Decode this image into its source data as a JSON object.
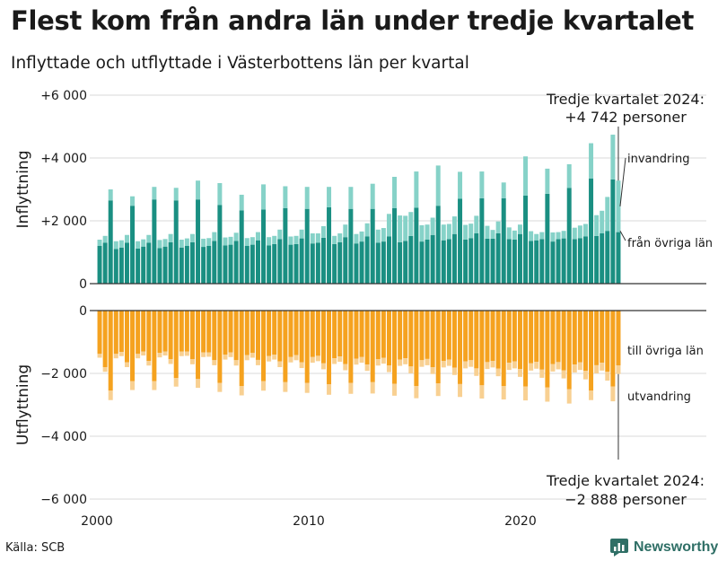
{
  "title": "Flest kom från andra län under tredje kvartalet",
  "subtitle": "Inflyttade och utflyttade i Västerbottens län per kvartal",
  "source": "Källa: SCB",
  "brand": "Newsworthy",
  "colors": {
    "inflow_main": "#1a8f82",
    "inflow_light": "#86d2c8",
    "outflow_main": "#f5a21f",
    "outflow_light": "#f8d092",
    "grid": "#d9d9d9",
    "zero": "#333333",
    "brand": "#2f6f66"
  },
  "chart_data": [
    {
      "type": "bar",
      "stacked": true,
      "panel": "top",
      "ylabel": "Inflyttning",
      "ylim": [
        0,
        6000
      ],
      "yticks": [
        0,
        2000,
        4000,
        6000
      ],
      "ytick_labels": [
        "0",
        "+2 000",
        "+4 000",
        "+6 000"
      ],
      "x_start": 2000,
      "x_end": 2024.75,
      "quarters_per_year": 4,
      "series": [
        {
          "name": "från övriga län",
          "values": [
            1200,
            1300,
            2650,
            1100,
            1150,
            1300,
            2480,
            1120,
            1180,
            1300,
            2680,
            1130,
            1180,
            1320,
            2650,
            1150,
            1200,
            1320,
            2680,
            1170,
            1200,
            1360,
            2500,
            1220,
            1240,
            1360,
            2330,
            1200,
            1240,
            1380,
            2360,
            1220,
            1260,
            1420,
            2400,
            1240,
            1260,
            1440,
            2380,
            1280,
            1300,
            1460,
            2430,
            1260,
            1320,
            1480,
            2380,
            1280,
            1340,
            1500,
            2380,
            1300,
            1340,
            1500,
            2400,
            1320,
            1360,
            1520,
            2420,
            1340,
            1400,
            1550,
            2480,
            1380,
            1420,
            1580,
            2700,
            1400,
            1450,
            1600,
            2720,
            1430,
            1430,
            1600,
            2720,
            1420,
            1400,
            1580,
            2800,
            1360,
            1380,
            1420,
            2860,
            1340,
            1420,
            1440,
            3050,
            1420,
            1450,
            1500,
            3350,
            1520,
            1600,
            1680,
            3320,
            1640
          ]
        },
        {
          "name": "invandring",
          "values": [
            200,
            220,
            350,
            250,
            230,
            250,
            300,
            230,
            230,
            250,
            400,
            260,
            240,
            260,
            400,
            250,
            240,
            260,
            600,
            260,
            250,
            280,
            700,
            250,
            250,
            260,
            500,
            250,
            240,
            260,
            800,
            260,
            260,
            300,
            700,
            260,
            260,
            280,
            700,
            320,
            300,
            370,
            650,
            260,
            280,
            400,
            700,
            300,
            320,
            420,
            800,
            420,
            430,
            720,
            1000,
            850,
            800,
            760,
            1150,
            520,
            480,
            550,
            1280,
            500,
            480,
            560,
            860,
            470,
            460,
            560,
            850,
            410,
            280,
            380,
            500,
            370,
            290,
            300,
            1250,
            310,
            200,
            220,
            800,
            290,
            220,
            240,
            750,
            360,
            400,
            400,
            1120,
            660,
            720,
            1080,
            1422,
            1640
          ]
        }
      ],
      "annotation": {
        "lines": [
          "Tredje kvartalet 2024:",
          "+4 742 personer"
        ]
      },
      "series_labels": [
        "invandring",
        "från övriga län"
      ]
    },
    {
      "type": "bar",
      "stacked": true,
      "panel": "bottom",
      "ylabel": "Utflyttning",
      "ylim": [
        -6000,
        0
      ],
      "yticks": [
        0,
        -2000,
        -4000,
        -6000
      ],
      "ytick_labels": [
        "0",
        "−2 000",
        "−4 000",
        "−6 000"
      ],
      "xticks": [
        2000,
        2010,
        2020
      ],
      "xtick_labels": [
        "2000",
        "2010",
        "2020"
      ],
      "x_start": 2000,
      "x_end": 2024.75,
      "quarters_per_year": 4,
      "series": [
        {
          "name": "till övriga län",
          "values": [
            -1380,
            -1800,
            -2550,
            -1380,
            -1320,
            -1650,
            -2250,
            -1380,
            -1300,
            -1600,
            -2250,
            -1350,
            -1300,
            -1550,
            -2150,
            -1300,
            -1300,
            -1550,
            -2180,
            -1330,
            -1330,
            -1580,
            -2300,
            -1400,
            -1330,
            -1580,
            -2400,
            -1420,
            -1350,
            -1570,
            -2250,
            -1450,
            -1400,
            -1620,
            -2280,
            -1480,
            -1420,
            -1650,
            -2300,
            -1480,
            -1440,
            -1680,
            -2350,
            -1520,
            -1460,
            -1700,
            -2300,
            -1530,
            -1480,
            -1720,
            -2280,
            -1550,
            -1500,
            -1750,
            -2330,
            -1560,
            -1520,
            -1780,
            -2400,
            -1580,
            -1540,
            -1800,
            -2320,
            -1600,
            -1560,
            -1820,
            -2340,
            -1620,
            -1580,
            -1840,
            -2380,
            -1640,
            -1600,
            -1850,
            -2400,
            -1660,
            -1620,
            -1860,
            -2420,
            -1680,
            -1630,
            -1880,
            -2450,
            -1700,
            -1640,
            -1900,
            -2500,
            -1720,
            -1650,
            -1920,
            -2550,
            -1740,
            -1660,
            -1950,
            -2420,
            -1750
          ]
        },
        {
          "name": "utvandring",
          "values": [
            -120,
            -150,
            -300,
            -140,
            -130,
            -150,
            -280,
            -140,
            -130,
            -150,
            -280,
            -140,
            -130,
            -150,
            -270,
            -150,
            -140,
            -160,
            -280,
            -150,
            -140,
            -160,
            -290,
            -160,
            -150,
            -170,
            -300,
            -160,
            -150,
            -170,
            -300,
            -170,
            -160,
            -180,
            -310,
            -170,
            -160,
            -180,
            -320,
            -180,
            -170,
            -190,
            -330,
            -180,
            -170,
            -200,
            -350,
            -190,
            -180,
            -200,
            -360,
            -200,
            -190,
            -210,
            -380,
            -200,
            -190,
            -220,
            -390,
            -210,
            -200,
            -220,
            -400,
            -210,
            -200,
            -230,
            -410,
            -220,
            -210,
            -240,
            -420,
            -220,
            -210,
            -240,
            -430,
            -230,
            -220,
            -250,
            -440,
            -230,
            -220,
            -260,
            -450,
            -240,
            -230,
            -260,
            -460,
            -250,
            -240,
            -270,
            -300,
            -260,
            -250,
            -280,
            -468,
            -270
          ]
        }
      ],
      "annotation": {
        "lines": [
          "Tredje kvartalet 2024:",
          "−2 888 personer"
        ]
      },
      "series_labels": [
        "till övriga län",
        "utvandring"
      ]
    }
  ]
}
